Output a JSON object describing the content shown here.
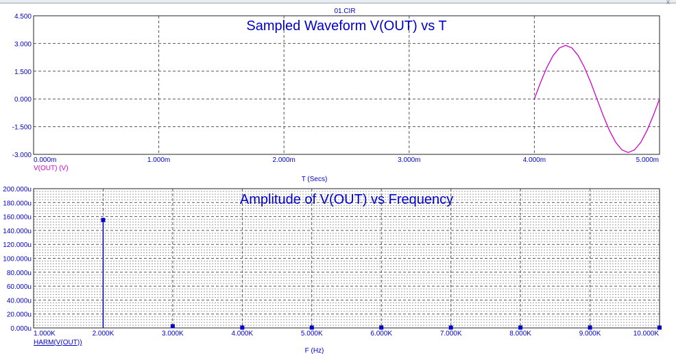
{
  "window": {
    "file_title": "01.CIR",
    "close_glyph": "x"
  },
  "chart_data": [
    {
      "type": "line",
      "title": "Sampled Waveform  V(OUT) vs T",
      "xlabel": "T (Secs)",
      "ylabel": "",
      "series": [
        {
          "name": "V(OUT) (V)",
          "color": "#d000d0",
          "x": [
            0.004,
            0.00405,
            0.0041,
            0.00415,
            0.0042,
            0.00425,
            0.0043,
            0.00435,
            0.0044,
            0.00445,
            0.0045,
            0.00455,
            0.0046,
            0.00465,
            0.0047,
            0.00475,
            0.0048,
            0.00485,
            0.0049,
            0.00495,
            0.005
          ],
          "y": [
            0.0,
            0.9,
            1.71,
            2.35,
            2.76,
            2.9,
            2.76,
            2.35,
            1.71,
            0.9,
            0.0,
            -0.9,
            -1.71,
            -2.35,
            -2.76,
            -2.9,
            -2.76,
            -2.35,
            -1.71,
            -0.9,
            0.0
          ]
        }
      ],
      "xlim": [
        0,
        0.005
      ],
      "ylim": [
        -3,
        4.5
      ],
      "x_ticks": [
        "0.000m",
        "1.000m",
        "2.000m",
        "3.000m",
        "4.000m",
        "5.000m"
      ],
      "y_ticks": [
        "4.500",
        "3.000",
        "1.500",
        "0.000",
        "-1.500",
        "-3.000"
      ],
      "grid": "dashed"
    },
    {
      "type": "bar",
      "title": "Amplitude of V(OUT) vs Frequency",
      "xlabel": "F (Hz)",
      "ylabel": "",
      "series": [
        {
          "name": "HARM(V(OUT))",
          "color": "#0000cc",
          "x": [
            2000,
            3000,
            4000,
            5000,
            6000,
            7000,
            8000,
            9000,
            10000
          ],
          "y": [
            0.000155,
            2.5e-06,
            5e-07,
            5e-07,
            5e-07,
            5e-07,
            5e-07,
            5e-07,
            5e-07
          ]
        }
      ],
      "xlim": [
        1000,
        10000
      ],
      "ylim": [
        0,
        0.0002
      ],
      "x_ticks": [
        "1.000K",
        "2.000K",
        "3.000K",
        "4.000K",
        "5.000K",
        "6.000K",
        "7.000K",
        "8.000K",
        "9.000K",
        "10.000K"
      ],
      "y_ticks": [
        "200.000u",
        "180.000u",
        "160.000u",
        "140.000u",
        "120.000u",
        "100.000u",
        "80.000u",
        "60.000u",
        "40.000u",
        "20.000u",
        "0.000u"
      ],
      "grid": "dashed"
    }
  ]
}
